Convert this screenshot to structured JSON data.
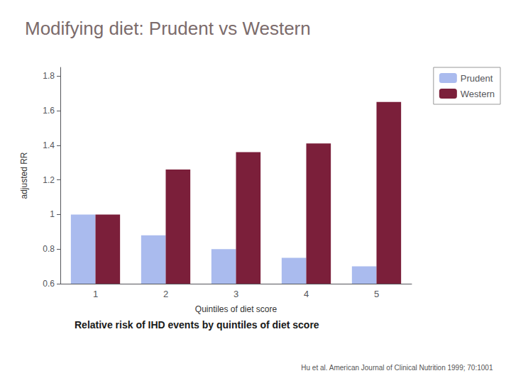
{
  "chart_data": {
    "type": "bar",
    "title": "Modifying diet: Prudent vs Western",
    "subtitle": "Relative risk of IHD events by quintiles of diet score",
    "annotations": [
      "Hu et al. American Journal of Clinical Nutrition 1999; 70:1001"
    ],
    "xlabel": "Quintiles of diet score",
    "ylabel": "adjusted RR",
    "categories": [
      "1",
      "2",
      "3",
      "4",
      "5"
    ],
    "series": [
      {
        "name": "Prudent",
        "color": "#AABBEE",
        "values": [
          1.0,
          0.88,
          0.8,
          0.75,
          0.7
        ]
      },
      {
        "name": "Western",
        "color": "#7B1F3A",
        "values": [
          1.0,
          1.26,
          1.36,
          1.41,
          1.65
        ]
      }
    ],
    "ylim": [
      0.6,
      1.85
    ],
    "yticks": [
      0.6,
      0.8,
      1,
      1.2,
      1.4,
      1.6,
      1.8
    ],
    "grid": false,
    "legend": "upper right"
  }
}
